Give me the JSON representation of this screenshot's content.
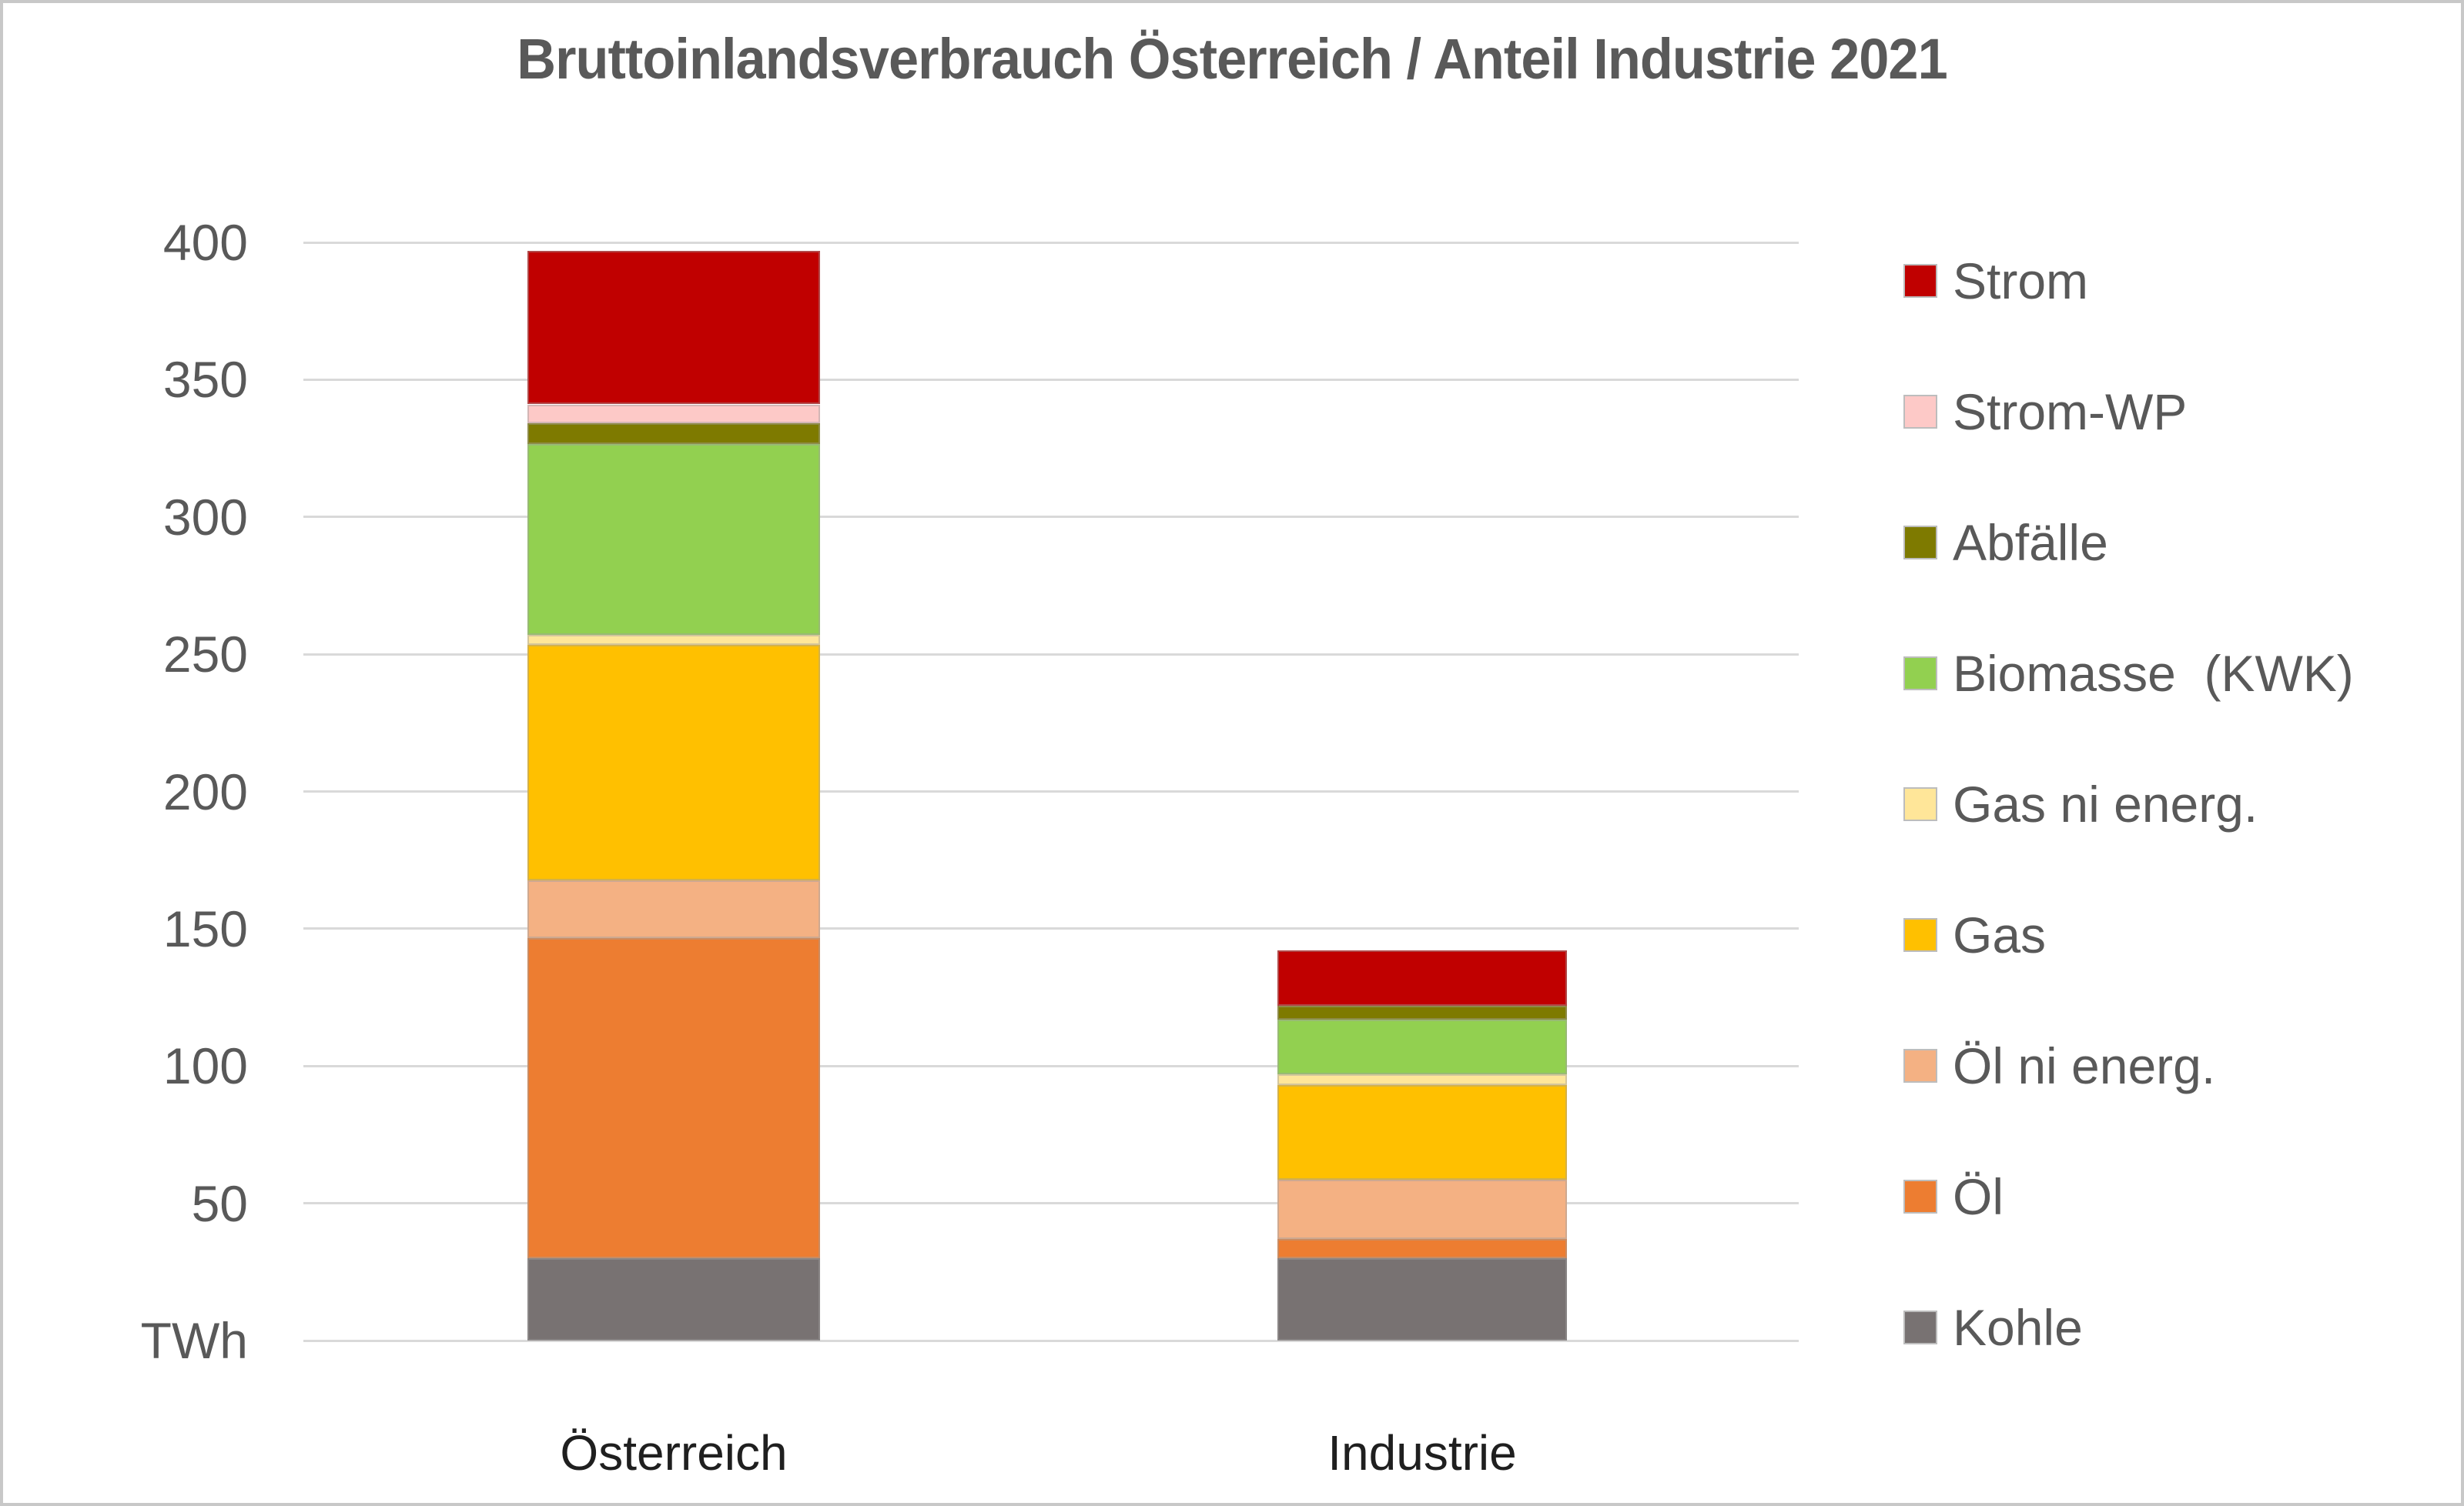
{
  "chart_data": {
    "type": "bar",
    "stacked": true,
    "title": "Bruttoinlandsverbrauch Österreich / Anteil Industrie 2021",
    "unit_label": "TWh",
    "ylim": [
      0,
      400
    ],
    "y_ticks": [
      400,
      350,
      300,
      250,
      200,
      150,
      100,
      50
    ],
    "grid": true,
    "legend_position": "right",
    "categories": [
      "Österreich",
      "Industrie"
    ],
    "series": [
      {
        "name": "Kohle",
        "color": "#787272",
        "values": [
          30,
          30
        ]
      },
      {
        "name": "Öl",
        "color": "#ed7d31",
        "values": [
          116.5,
          7
        ]
      },
      {
        "name": "Öl ni energ.",
        "color": "#f4b183",
        "values": [
          21,
          21.5
        ]
      },
      {
        "name": "Gas",
        "color": "#ffc000",
        "values": [
          86,
          34.5
        ]
      },
      {
        "name": "Gas ni energ.",
        "color": "#ffe699",
        "values": [
          3.5,
          4
        ]
      },
      {
        "name": "Biomasse  (KWK)",
        "color": "#92d050",
        "values": [
          69.5,
          20
        ]
      },
      {
        "name": "Abfälle",
        "color": "#7e7a00",
        "values": [
          7.5,
          5
        ]
      },
      {
        "name": "Strom-WP",
        "color": "#fdc9c7",
        "values": [
          7,
          0
        ]
      },
      {
        "name": "Strom",
        "color": "#c00000",
        "values": [
          56,
          20
        ]
      }
    ],
    "totals": [
      397,
      142
    ]
  },
  "styles": {
    "grid_color": "#d9d9d9",
    "axis_text_color": "#595959",
    "category_text_color": "#1f1f1f",
    "page_border_color": "#c8c8c8",
    "segment_border_color": "#a0a0a0"
  }
}
